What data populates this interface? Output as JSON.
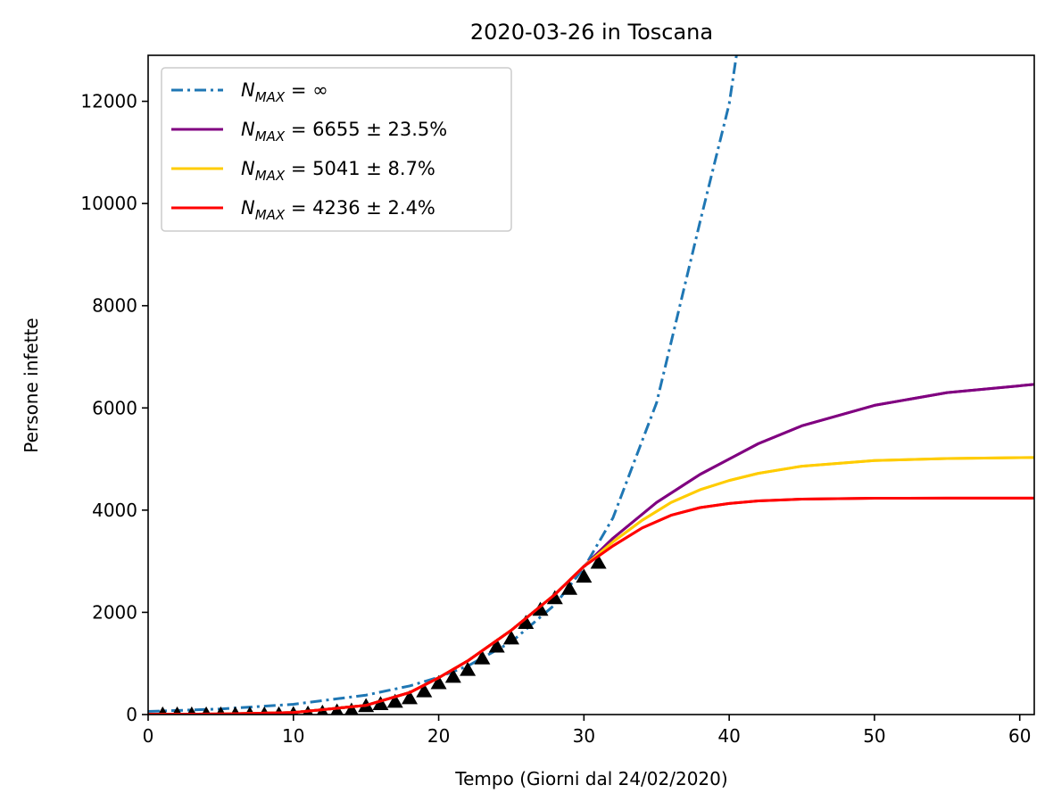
{
  "chart_data": {
    "type": "line",
    "title": "2020-03-26 in Toscana",
    "xlabel": "Tempo (Giorni dal 24/02/2020)",
    "ylabel": "Persone infette",
    "xlim": [
      0,
      61
    ],
    "ylim": [
      0,
      12900
    ],
    "xticks": [
      0,
      10,
      20,
      30,
      40,
      50,
      60
    ],
    "yticks": [
      0,
      2000,
      4000,
      6000,
      8000,
      10000,
      12000
    ],
    "grid": false,
    "legend_position": "upper-left",
    "series": [
      {
        "name": "N_MAX = ∞",
        "legend_sub": "MAX",
        "legend_rest": " = ∞",
        "style": "dashdot",
        "color": "#1f77b4",
        "x": [
          0,
          5,
          10,
          15,
          18,
          20,
          22,
          25,
          28,
          30,
          32,
          35,
          38,
          40,
          40.5
        ],
        "y": [
          60,
          110,
          200,
          380,
          560,
          730,
          950,
          1420,
          2150,
          2870,
          3850,
          6100,
          9650,
          11950,
          12900
        ]
      },
      {
        "name": "N_MAX = 6655 ± 23.5%",
        "legend_sub": "MAX",
        "legend_rest": " = 6655 ± 23.5%",
        "style": "solid",
        "color": "#800080",
        "x": [
          0,
          5,
          10,
          15,
          18,
          20,
          22,
          25,
          28,
          30,
          32,
          35,
          38,
          40,
          42,
          45,
          50,
          55,
          61
        ],
        "y": [
          5,
          10,
          40,
          180,
          430,
          720,
          1050,
          1650,
          2350,
          2900,
          3450,
          4150,
          4700,
          5000,
          5300,
          5650,
          6050,
          6300,
          6460
        ]
      },
      {
        "name": "N_MAX = 5041 ± 8.7%",
        "legend_sub": "MAX",
        "legend_rest": " = 5041 ± 8.7%",
        "style": "solid",
        "color": "#ffcc00",
        "x": [
          0,
          5,
          10,
          15,
          18,
          20,
          22,
          25,
          28,
          30,
          32,
          34,
          36,
          38,
          40,
          42,
          45,
          50,
          55,
          61
        ],
        "y": [
          5,
          10,
          40,
          180,
          430,
          720,
          1050,
          1650,
          2350,
          2900,
          3380,
          3800,
          4150,
          4400,
          4580,
          4720,
          4860,
          4970,
          5010,
          5030
        ]
      },
      {
        "name": "N_MAX = 4236 ± 2.4%",
        "legend_sub": "MAX",
        "legend_rest": " = 4236 ± 2.4%",
        "style": "solid",
        "color": "#ff0000",
        "x": [
          0,
          5,
          10,
          15,
          18,
          20,
          22,
          25,
          28,
          30,
          32,
          34,
          36,
          38,
          40,
          42,
          45,
          50,
          55,
          61
        ],
        "y": [
          5,
          10,
          40,
          180,
          430,
          720,
          1050,
          1650,
          2350,
          2900,
          3300,
          3650,
          3900,
          4050,
          4130,
          4180,
          4215,
          4232,
          4236,
          4236
        ]
      }
    ],
    "observed": {
      "marker": "triangle",
      "color": "#000000",
      "x": [
        1,
        2,
        3,
        4,
        5,
        6,
        7,
        8,
        9,
        10,
        11,
        12,
        13,
        14,
        15,
        16,
        17,
        18,
        19,
        20,
        21,
        22,
        23,
        24,
        25,
        26,
        27,
        28,
        29,
        30,
        31
      ],
      "y": [
        2,
        2,
        2,
        2,
        2,
        2,
        2,
        3,
        5,
        10,
        20,
        37,
        61,
        78,
        166,
        206,
        250,
        320,
        456,
        615,
        740,
        876,
        1100,
        1330,
        1490,
        1793,
        2050,
        2277,
        2461,
        2700,
        2972
      ]
    }
  }
}
